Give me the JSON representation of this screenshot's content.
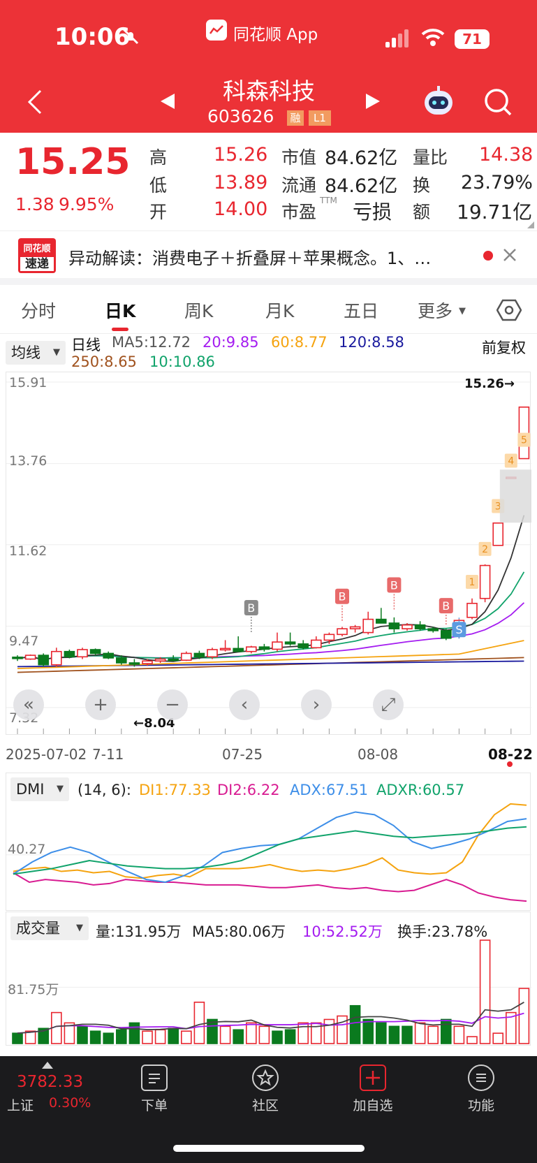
{
  "status_bar": {
    "time": "10:06",
    "app_label": "同花顺 App",
    "battery": "71"
  },
  "header": {
    "stock_name": "科森科技",
    "stock_code": "603626",
    "badge_rong": "融",
    "badge_level": "L1"
  },
  "quote": {
    "price": "15.25",
    "change": "1.38",
    "change_pct": "9.95%",
    "labels": {
      "high": "高",
      "low": "低",
      "open": "开",
      "mcap": "市值",
      "float": "流通",
      "pe": "市盈",
      "pe_sup": "TTM",
      "vol_ratio": "量比",
      "turnover": "换",
      "amount": "额"
    },
    "high": "15.26",
    "low": "13.89",
    "open": "14.00",
    "mcap": "84.62亿",
    "float_mcap": "84.62亿",
    "pe": "亏损",
    "vol_ratio": "14.38",
    "turnover": "23.79%",
    "amount": "19.71亿"
  },
  "news": {
    "logo_top": "同花顺",
    "logo_bottom": "速递",
    "text": "异动解读：消费电子＋折叠屏＋苹果概念。1、…"
  },
  "tabs": {
    "items": [
      "分时",
      "日K",
      "周K",
      "月K",
      "五日"
    ],
    "active": 1,
    "more": "更多"
  },
  "kline": {
    "selector": "均线",
    "period": "日线",
    "adjust": "前复权",
    "ma5": "MA5:12.72",
    "ma20": "20:9.85",
    "ma60": "60:8.77",
    "ma120": "120:8.58",
    "ma250": "250:8.65",
    "ma10": "10:10.86",
    "y_labels": [
      "15.91",
      "13.76",
      "11.62",
      "9.47",
      "7.32"
    ],
    "max_label": "15.26→",
    "min_label": "←8.04",
    "x_labels": {
      "start": "2025-07-02",
      "a": "7-11",
      "b": "07-25",
      "c": "08-08",
      "end": "08-22"
    },
    "markers": {
      "b": "B",
      "s": "S",
      "n1": "1",
      "n2": "2",
      "n3": "3",
      "n4": "4",
      "n5": "5"
    },
    "colors": {
      "ma5": "#333333",
      "ma10": "#11a36b",
      "ma20": "#a41cf0",
      "ma60": "#f5a30f",
      "ma120": "#1a1a9e",
      "ma250": "#a0521e",
      "up": "#e8262f",
      "down": "#0a7a1e"
    }
  },
  "chart_controls": {
    "back": "«",
    "zoom_in": "+",
    "zoom_out": "−",
    "prev": "‹",
    "next": "›",
    "fullscreen": "⤢"
  },
  "dmi": {
    "selector": "DMI",
    "params": "(14, 6):",
    "di1": "DI1:77.33",
    "di2": "DI2:6.22",
    "adx": "ADX:67.51",
    "adxr": "ADXR:60.57",
    "y_label": "40.27",
    "colors": {
      "di1": "#f5a30f",
      "di2": "#d81b91",
      "adx": "#3d8ee8",
      "adxr": "#11a36b"
    }
  },
  "volume": {
    "selector": "成交量",
    "vol": "量:131.95万",
    "ma5": "MA5:80.06万",
    "ma10": "10:52.52万",
    "turnover": "换手:23.78%",
    "y_label": "81.75万"
  },
  "bottom_bar": {
    "index_value": "3782.33",
    "index_name": "上证",
    "index_pct": "0.30%",
    "items": [
      "下单",
      "社区",
      "加自选",
      "功能"
    ]
  },
  "chart_data": [
    {
      "type": "candlestick",
      "title": "日线",
      "y_ticks": [
        "15.91",
        "13.76",
        "11.62",
        "9.47",
        "7.32"
      ],
      "x_ticks": [
        "2025-07-02",
        "7-11",
        "07-25",
        "08-08",
        "08-22"
      ],
      "ohlc": [
        [
          8.65,
          8.7,
          8.55,
          8.62
        ],
        [
          8.6,
          8.72,
          8.58,
          8.7
        ],
        [
          8.7,
          8.75,
          8.4,
          8.45
        ],
        [
          8.45,
          8.9,
          8.4,
          8.8
        ],
        [
          8.8,
          8.85,
          8.62,
          8.66
        ],
        [
          8.66,
          8.9,
          8.6,
          8.85
        ],
        [
          8.85,
          8.88,
          8.7,
          8.75
        ],
        [
          8.75,
          8.8,
          8.6,
          8.63
        ],
        [
          8.63,
          8.7,
          8.45,
          8.5
        ],
        [
          8.5,
          8.6,
          8.4,
          8.48
        ],
        [
          8.48,
          8.6,
          8.42,
          8.55
        ],
        [
          8.55,
          8.65,
          8.5,
          8.6
        ],
        [
          8.6,
          8.7,
          8.55,
          8.57
        ],
        [
          8.57,
          8.8,
          8.55,
          8.75
        ],
        [
          8.75,
          8.82,
          8.6,
          8.66
        ],
        [
          8.66,
          8.9,
          8.6,
          8.85
        ],
        [
          8.85,
          9.1,
          8.8,
          8.88
        ],
        [
          8.88,
          9.2,
          8.8,
          8.8
        ],
        [
          8.8,
          8.95,
          8.75,
          8.92
        ],
        [
          8.92,
          9.0,
          8.8,
          8.86
        ],
        [
          8.86,
          9.3,
          8.8,
          9.05
        ],
        [
          9.05,
          9.3,
          8.95,
          9.0
        ],
        [
          9.0,
          9.1,
          8.85,
          8.9
        ],
        [
          8.9,
          9.2,
          8.88,
          9.1
        ],
        [
          9.1,
          9.3,
          9.0,
          9.25
        ],
        [
          9.25,
          9.45,
          9.2,
          9.4
        ],
        [
          9.4,
          9.5,
          9.3,
          9.45
        ],
        [
          9.3,
          9.85,
          9.25,
          9.65
        ],
        [
          9.65,
          9.95,
          9.55,
          9.55
        ],
        [
          9.55,
          9.7,
          9.3,
          9.4
        ],
        [
          9.4,
          9.55,
          9.35,
          9.5
        ],
        [
          9.5,
          9.6,
          9.35,
          9.4
        ],
        [
          9.4,
          9.45,
          9.3,
          9.35
        ],
        [
          9.35,
          9.4,
          9.1,
          9.15
        ],
        [
          9.2,
          9.65,
          9.15,
          9.62
        ],
        [
          9.7,
          10.2,
          9.65,
          10.07
        ],
        [
          10.2,
          11.1,
          10.1,
          11.07
        ],
        [
          11.6,
          12.2,
          11.6,
          12.19
        ],
        [
          13.4,
          13.4,
          13.4,
          13.4
        ],
        [
          13.89,
          15.26,
          13.89,
          15.25
        ]
      ]
    },
    {
      "type": "line",
      "title": "DMI",
      "series": [
        {
          "name": "DI1",
          "values": [
            28,
            30,
            31,
            28,
            29,
            27,
            28,
            24,
            23,
            25,
            26,
            24,
            30,
            30,
            30,
            31,
            33,
            30,
            28,
            29,
            28,
            30,
            33,
            38,
            29,
            27,
            26,
            27,
            35,
            55,
            70,
            78,
            77
          ]
        },
        {
          "name": "DI2",
          "values": [
            27,
            20,
            22,
            21,
            20,
            18,
            19,
            22,
            21,
            20,
            20,
            19,
            18,
            18,
            18,
            17,
            16,
            16,
            17,
            18,
            16,
            15,
            16,
            14,
            13,
            14,
            18,
            22,
            18,
            12,
            9,
            7,
            6
          ]
        },
        {
          "name": "ADX",
          "values": [
            26,
            35,
            42,
            46,
            42,
            35,
            28,
            22,
            20,
            25,
            32,
            42,
            45,
            47,
            48,
            52,
            60,
            68,
            72,
            70,
            62,
            50,
            45,
            48,
            52,
            58,
            65,
            67
          ]
        },
        {
          "name": "ADXR",
          "values": [
            26,
            28,
            30,
            33,
            36,
            34,
            32,
            31,
            30,
            30,
            31,
            33,
            36,
            42,
            48,
            52,
            54,
            56,
            58,
            56,
            54,
            53,
            54,
            55,
            56,
            58,
            60,
            61
          ]
        }
      ]
    },
    {
      "type": "bar",
      "title": "成交量",
      "y_ticks": [
        "81.75万"
      ],
      "values": [
        15,
        18,
        22,
        45,
        30,
        25,
        18,
        15,
        20,
        30,
        18,
        20,
        22,
        18,
        60,
        35,
        25,
        20,
        30,
        25,
        18,
        20,
        30,
        30,
        35,
        40,
        55,
        35,
        30,
        25,
        25,
        30,
        25,
        35,
        25,
        10,
        150,
        15,
        45,
        80
      ],
      "directions": [
        "d",
        "u",
        "d",
        "u",
        "u",
        "d",
        "d",
        "d",
        "d",
        "d",
        "u",
        "u",
        "d",
        "u",
        "u",
        "d",
        "u",
        "d",
        "u",
        "u",
        "d",
        "d",
        "u",
        "u",
        "u",
        "u",
        "d",
        "d",
        "d",
        "d",
        "d",
        "u",
        "u",
        "d",
        "u",
        "u",
        "u",
        "u",
        "u",
        "u"
      ]
    }
  ]
}
